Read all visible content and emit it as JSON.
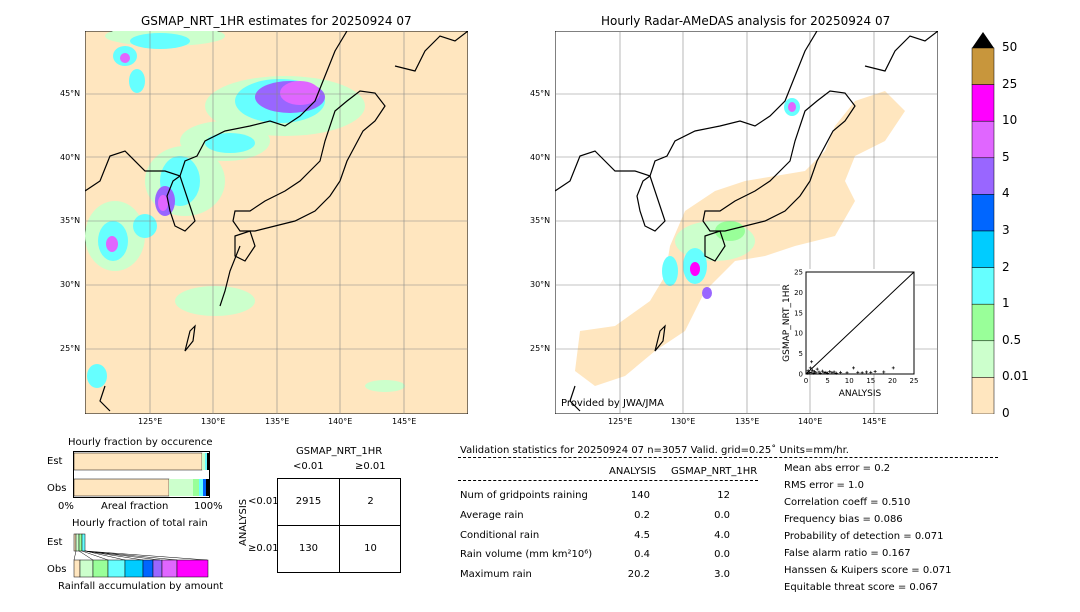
{
  "left_map": {
    "title": "GSMAP_NRT_1HR estimates for 20250924 07",
    "lat_ticks": [
      "45°N",
      "40°N",
      "35°N",
      "30°N",
      "25°N"
    ],
    "lon_ticks": [
      "125°E",
      "130°E",
      "135°E",
      "140°E",
      "145°E"
    ]
  },
  "right_map": {
    "title": "Hourly Radar-AMeDAS analysis for 20250924 07",
    "lat_ticks": [
      "45°N",
      "40°N",
      "35°N",
      "30°N",
      "25°N"
    ],
    "lon_ticks": [
      "125°E",
      "130°E",
      "135°E",
      "140°E",
      "145°E"
    ],
    "credit": "Provided by JWA/JMA"
  },
  "colorbar": {
    "labels": [
      "50",
      "25",
      "10",
      "5",
      "4",
      "3",
      "2",
      "1",
      "0.5",
      "0.01",
      "0"
    ],
    "colors": [
      "#c8963c",
      "#ff00ff",
      "#e066ff",
      "#9966ff",
      "#0066ff",
      "#00ccff",
      "#66ffff",
      "#99ff99",
      "#ccffcc",
      "#ffe6bf"
    ]
  },
  "occurrence": {
    "title": "Hourly fraction by occurence",
    "row_est": "Est",
    "row_obs": "Obs",
    "xlabel": "Areal fraction",
    "x_min": "0%",
    "x_max": "100%"
  },
  "total_rain": {
    "title": "Hourly fraction of total rain",
    "row_est": "Est",
    "row_obs": "Obs",
    "xlabel": "Rainfall accumulation by amount"
  },
  "contingency": {
    "title": "GSMAP_NRT_1HR",
    "col_lt": "<0.01",
    "col_ge": "≥0.01",
    "side_label": "ANALYSIS",
    "row_lt": "<0.01",
    "row_ge": "≥0.01",
    "cells": [
      "2915",
      "2",
      "130",
      "10"
    ]
  },
  "stats": {
    "header": "Validation statistics for 20250924 07  n=3057 Valid. grid=0.25˚ Units=mm/hr.",
    "col_analysis": "ANALYSIS",
    "col_gsmap": "GSMAP_NRT_1HR",
    "rows": [
      {
        "label": "Num of gridpoints raining",
        "a": "140",
        "g": "12"
      },
      {
        "label": "Average rain",
        "a": "0.2",
        "g": "0.0"
      },
      {
        "label": "Conditional rain",
        "a": "4.5",
        "g": "4.0"
      },
      {
        "label": "Rain volume (mm km²10⁶)",
        "a": "0.4",
        "g": "0.0"
      },
      {
        "label": "Maximum rain",
        "a": "20.2",
        "g": "3.0"
      }
    ],
    "scores": [
      "Mean abs error =    0.2",
      "RMS error =    1.0",
      "Correlation coeff =  0.510",
      "Frequency bias =  0.086",
      "Probability of detection =  0.071",
      "False alarm ratio =  0.167",
      "Hanssen & Kuipers score =  0.071",
      "Equitable threat score =  0.067"
    ]
  },
  "chart_data": {
    "type": "scatter",
    "xlabel": "ANALYSIS",
    "ylabel": "GSMAP_NRT_1HR",
    "xlim": [
      0,
      25
    ],
    "ylim": [
      0,
      25
    ],
    "ticks": [
      "0",
      "5",
      "10",
      "15",
      "20",
      "25"
    ],
    "points": [
      [
        0.3,
        0.2
      ],
      [
        0.5,
        0.8
      ],
      [
        0.8,
        0.3
      ],
      [
        1.0,
        1.5
      ],
      [
        1.2,
        0.4
      ],
      [
        1.5,
        0.9
      ],
      [
        1.8,
        0.2
      ],
      [
        2.0,
        0.6
      ],
      [
        2.3,
        0.3
      ],
      [
        2.6,
        1.2
      ],
      [
        3.0,
        0.5
      ],
      [
        3.3,
        0.2
      ],
      [
        3.8,
        0.7
      ],
      [
        4.2,
        0.3
      ],
      [
        4.6,
        0.4
      ],
      [
        5.0,
        0.2
      ],
      [
        5.5,
        0.6
      ],
      [
        6.0,
        0.3
      ],
      [
        6.5,
        0.5
      ],
      [
        7.0,
        0.2
      ],
      [
        8.0,
        0.4
      ],
      [
        9.5,
        0.3
      ],
      [
        11.0,
        1.5
      ],
      [
        12.0,
        0.4
      ],
      [
        13.0,
        0.3
      ],
      [
        14.0,
        0.5
      ],
      [
        15.0,
        0.4
      ],
      [
        16.0,
        0.6
      ],
      [
        18.0,
        0.5
      ],
      [
        20.2,
        1.5
      ],
      [
        1.3,
        3.0
      ]
    ]
  }
}
